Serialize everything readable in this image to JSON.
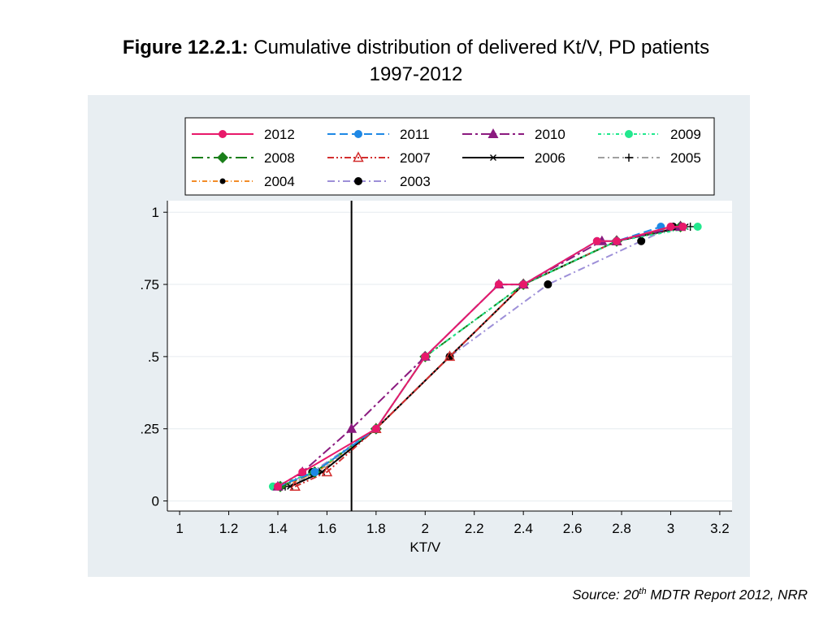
{
  "title": {
    "prefix": "Figure 12.2.1:",
    "line1": " Cumulative distribution of delivered Kt/V, PD patients",
    "line2": "1997-2012"
  },
  "source": {
    "pre": "Source: 20",
    "sup": "th",
    "post": " MDTR Report 2012, NRR"
  },
  "colors": {
    "plot_region_bg": "#e8eef2",
    "plot_bg": "#ffffff",
    "grid": "#e6ebef",
    "reference_line": "#000000"
  },
  "chart_data": {
    "type": "line",
    "xlabel": "KT/V",
    "ylabel": "",
    "xlim": [
      0.95,
      3.25
    ],
    "ylim": [
      -0.035,
      1.04
    ],
    "xticks": [
      1,
      1.2,
      1.4,
      1.6,
      1.8,
      2,
      2.2,
      2.4,
      2.6,
      2.8,
      3,
      3.2
    ],
    "xtick_labels": [
      "1",
      "1.2",
      "1.4",
      "1.6",
      "1.8",
      "2",
      "2.2",
      "2.4",
      "2.6",
      "2.8",
      "3",
      "3.2"
    ],
    "yticks": [
      0,
      0.25,
      0.5,
      0.75,
      1
    ],
    "ytick_labels": [
      "0",
      ".25",
      ".5",
      ".75",
      "1"
    ],
    "grid": "horizontal",
    "reference_line_x": 1.7,
    "legend": {
      "position": "top",
      "columns": 4
    },
    "series": [
      {
        "name": "2012",
        "color": "#e8196a",
        "dash": "",
        "marker": "circle",
        "x": [
          1.4,
          1.5,
          1.8,
          2.0,
          2.3,
          2.4,
          2.7,
          2.78,
          3.0,
          3.05
        ],
        "y": [
          0.05,
          0.1,
          0.25,
          0.5,
          0.75,
          0.75,
          0.9,
          0.9,
          0.95,
          0.95
        ]
      },
      {
        "name": "2011",
        "color": "#1e88e5",
        "dash": "10,5",
        "marker": "circle",
        "x": [
          1.4,
          1.55,
          1.8,
          2.0,
          2.3,
          2.4,
          2.7,
          2.78,
          2.96
        ],
        "y": [
          0.05,
          0.1,
          0.25,
          0.5,
          0.75,
          0.75,
          0.9,
          0.9,
          0.95
        ]
      },
      {
        "name": "2010",
        "color": "#8b1a7f",
        "dash": "12,4,3,4",
        "marker": "triangle",
        "x": [
          1.4,
          1.5,
          1.7,
          2.0,
          2.3,
          2.4,
          2.72,
          2.78,
          3.04
        ],
        "y": [
          0.05,
          0.1,
          0.25,
          0.5,
          0.75,
          0.75,
          0.9,
          0.9,
          0.95
        ]
      },
      {
        "name": "2009",
        "color": "#22e88e",
        "dash": "4,3,1,3",
        "marker": "circle",
        "x": [
          1.38,
          1.55,
          1.8,
          2.0,
          2.4,
          2.78,
          3.11
        ],
        "y": [
          0.05,
          0.1,
          0.25,
          0.5,
          0.75,
          0.9,
          0.95
        ]
      },
      {
        "name": "2008",
        "color": "#1a7f1a",
        "dash": "14,5,3,5",
        "marker": "diamond",
        "x": [
          1.41,
          1.55,
          1.8,
          2.0,
          2.4,
          2.78,
          3.04
        ],
        "y": [
          0.05,
          0.1,
          0.25,
          0.5,
          0.75,
          0.9,
          0.95
        ]
      },
      {
        "name": "2007",
        "color": "#d32f2f",
        "dash": "8,3,2,3,2,3",
        "marker": "triangle-open",
        "x": [
          1.47,
          1.6,
          1.8,
          2.1,
          2.4,
          2.78,
          3.04
        ],
        "y": [
          0.05,
          0.1,
          0.25,
          0.5,
          0.75,
          0.9,
          0.95
        ]
      },
      {
        "name": "2006",
        "color": "#000000",
        "dash": "",
        "marker": "x",
        "x": [
          1.45,
          1.58,
          1.8,
          2.1,
          2.4,
          2.78,
          3.06
        ],
        "y": [
          0.05,
          0.1,
          0.25,
          0.5,
          0.75,
          0.9,
          0.95
        ]
      },
      {
        "name": "2005",
        "color": "#a0a0a0",
        "dash": "8,4,2,4",
        "marker": "plus",
        "x": [
          1.43,
          1.57,
          1.8,
          2.1,
          2.4,
          2.78,
          3.08
        ],
        "y": [
          0.05,
          0.1,
          0.25,
          0.5,
          0.75,
          0.9,
          0.95
        ]
      },
      {
        "name": "2004",
        "color": "#f28c28",
        "dash": "6,3,1,3",
        "marker": "dot",
        "x": [
          1.42,
          1.56,
          1.8,
          2.1,
          2.4,
          2.78,
          3.01
        ],
        "y": [
          0.05,
          0.1,
          0.25,
          0.5,
          0.75,
          0.9,
          0.95
        ]
      },
      {
        "name": "2003",
        "color": "#9d8fd8",
        "dash": "9,4,2,4",
        "marker": "circle-black",
        "x": [
          1.41,
          1.54,
          1.8,
          2.1,
          2.5,
          2.88,
          3.01
        ],
        "y": [
          0.05,
          0.1,
          0.25,
          0.5,
          0.75,
          0.9,
          0.95
        ]
      }
    ]
  }
}
